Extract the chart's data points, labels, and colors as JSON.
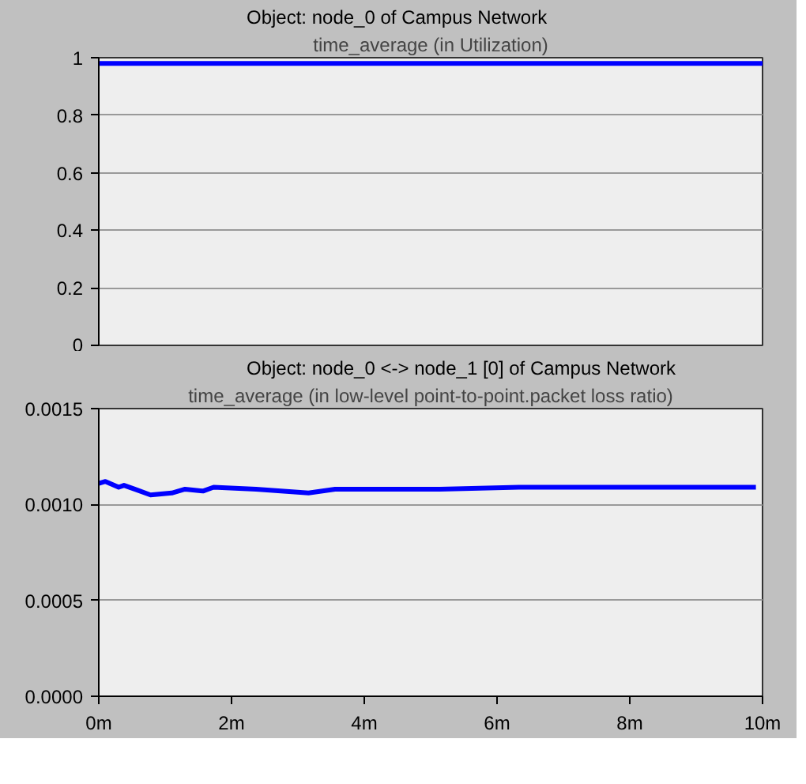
{
  "chart_data": [
    {
      "type": "line",
      "title": "time_average (in Utilization)",
      "x": [
        0,
        10
      ],
      "series": [
        {
          "name": "Object: node_0 of Campus Network",
          "color": "#0000ff",
          "values": [
            0.98,
            0.98
          ]
        }
      ],
      "xlim": [
        0,
        10
      ],
      "ylim": [
        0,
        1
      ],
      "yticks": [
        0,
        0.2,
        0.4,
        0.6,
        0.8,
        1
      ],
      "tick_labels": "y",
      "grid": "y",
      "legend": "top",
      "line_style": "solid"
    },
    {
      "type": "line",
      "title": "time_average (in low-level point-to-point.packet loss ratio)",
      "x": [
        0,
        0.1,
        0.3,
        0.38,
        0.54,
        0.78,
        1.1,
        1.3,
        1.57,
        1.73,
        2.37,
        3.16,
        3.56,
        4.35,
        5.14,
        6.33,
        7.92,
        8.71,
        9.9
      ],
      "series": [
        {
          "name": "Object: node_0 <-> node_1 [0] of Campus Network",
          "color": "#0000ff",
          "values": [
            0.00111,
            0.00112,
            0.00109,
            0.0011,
            0.00108,
            0.00105,
            0.00106,
            0.00108,
            0.00107,
            0.00109,
            0.00108,
            0.00106,
            0.00108,
            0.00108,
            0.00108,
            0.00109,
            0.00109,
            0.00109,
            0.00109
          ]
        }
      ],
      "xlim": [
        0,
        10
      ],
      "xticks": [
        {
          "value": 0,
          "label": "0m"
        },
        {
          "value": 2,
          "label": "2m"
        },
        {
          "value": 4,
          "label": "4m"
        },
        {
          "value": 6,
          "label": "6m"
        },
        {
          "value": 8,
          "label": "8m"
        },
        {
          "value": 10,
          "label": "10m"
        }
      ],
      "ylim": [
        0,
        0.0015
      ],
      "yticks": [
        {
          "value": 0,
          "label": "0.0000"
        },
        {
          "value": 0.0005,
          "label": "0.0005"
        },
        {
          "value": 0.001,
          "label": "0.0010"
        },
        {
          "value": 0.0015,
          "label": "0.0015"
        }
      ],
      "grid": "y",
      "legend": "top",
      "line_style": "solid"
    }
  ]
}
